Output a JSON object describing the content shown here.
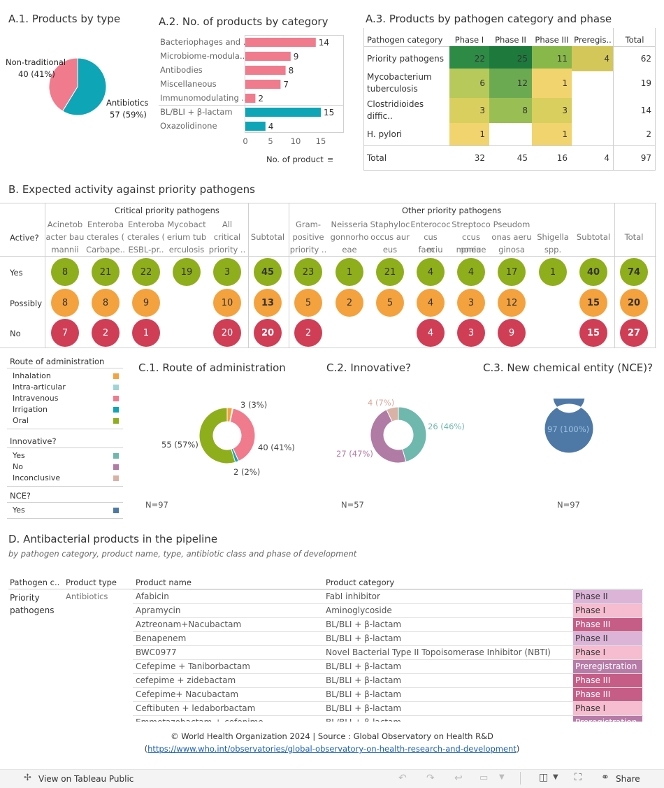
{
  "colors": {
    "pink": "#f07b8d",
    "teal": "#0ea5b7",
    "green": "#8fae1b",
    "orange": "#f4a23e",
    "red": "#cf3e55",
    "blue": "#4e79a7"
  },
  "a1": {
    "title": "A.1. Products by type",
    "nontrad_label": "Non-traditional",
    "nontrad_value": "40 (41%)",
    "antibiotics_label": "Antibiotics",
    "antibiotics_value": "57 (59%)"
  },
  "a2": {
    "title": "A.2. No. of products by category",
    "axis_label": "No. of product",
    "ticks": [
      "0",
      "5",
      "10",
      "15"
    ]
  },
  "a3": {
    "title": "A.3. Products by pathogen category and phase",
    "headers": [
      "Pathogen category",
      "Phase I",
      "Phase II",
      "Phase III",
      "Preregis..",
      "Total"
    ],
    "rows": [
      {
        "name": "Priority pathogens",
        "cells": [
          "22",
          "25",
          "11",
          "4"
        ],
        "total": "62"
      },
      {
        "name": "Mycobacterium tuberculosis",
        "cells": [
          "6",
          "12",
          "1",
          ""
        ],
        "total": "19"
      },
      {
        "name": "Clostridioides diffic..",
        "cells": [
          "3",
          "8",
          "3",
          ""
        ],
        "total": "14"
      },
      {
        "name": "H. pylori",
        "cells": [
          "1",
          "",
          "1",
          ""
        ],
        "total": "2"
      }
    ],
    "total_row": {
      "name": "Total",
      "cells": [
        "32",
        "45",
        "16",
        "4"
      ],
      "total": "97"
    }
  },
  "b": {
    "title": "B. Expected activity against priority pathogens",
    "group_critical": "Critical priority pathogens",
    "group_other": "Other priority pathogens",
    "active_label": "Active?",
    "row_labels": [
      "Yes",
      "Possibly",
      "No"
    ],
    "columns": [
      {
        "h1": "Acinetob",
        "h2": "acter bau",
        "h3": "mannii",
        "yes": "8",
        "pos": "8",
        "no": "7"
      },
      {
        "h1": "Enteroba",
        "h2": "cterales (",
        "h3": "Carbape..",
        "yes": "21",
        "pos": "8",
        "no": "2"
      },
      {
        "h1": "Enteroba",
        "h2": "cterales (",
        "h3": "ESBL-pr..",
        "yes": "22",
        "pos": "9",
        "no": "1"
      },
      {
        "h1": "Mycobact",
        "h2": "erium tub",
        "h3": "erculosis",
        "yes": "19",
        "pos": "",
        "no": ""
      },
      {
        "h1": "All",
        "h2": "critical",
        "h3": "priority ..",
        "yes": "3",
        "pos": "10",
        "no": "20"
      },
      {
        "h1": "",
        "h2": "Subtotal",
        "h3": "",
        "yes": "45",
        "pos": "13",
        "no": "20"
      },
      {
        "h1": "Gram-",
        "h2": "positive",
        "h3": "priority ..",
        "yes": "23",
        "pos": "5",
        "no": "2"
      },
      {
        "h1": "Neisseria",
        "h2": "gonnorho",
        "h3": "eae",
        "yes": "1",
        "pos": "2",
        "no": ""
      },
      {
        "h1": "Staphyloc",
        "h2": "occus aur",
        "h3": "eus",
        "yes": "21",
        "pos": "5",
        "no": ""
      },
      {
        "h1": "Enterococ",
        "h2": "cus faeciu",
        "h3": "m",
        "yes": "4",
        "pos": "4",
        "no": "4"
      },
      {
        "h1": "Streptoco",
        "h2": "ccus pneu",
        "h3": "moniae",
        "yes": "4",
        "pos": "3",
        "no": "3"
      },
      {
        "h1": "Pseudom",
        "h2": "onas aeru",
        "h3": "ginosa",
        "yes": "17",
        "pos": "12",
        "no": "9"
      },
      {
        "h1": "",
        "h2": "Shigella",
        "h3": "spp.",
        "yes": "1",
        "pos": "",
        "no": ""
      },
      {
        "h1": "",
        "h2": "Subtotal",
        "h3": "",
        "yes": "40",
        "pos": "15",
        "no": "15"
      },
      {
        "h1": "",
        "h2": "Total",
        "h3": "",
        "yes": "74",
        "pos": "20",
        "no": "27"
      }
    ]
  },
  "legends": {
    "route_title": "Route of administration",
    "route": [
      {
        "label": "Inhalation",
        "color": "#f4a23e"
      },
      {
        "label": "Intra-articular",
        "color": "#9fd4d6"
      },
      {
        "label": "Intravenous",
        "color": "#f07b8d"
      },
      {
        "label": "Irrigation",
        "color": "#0ea5b7"
      },
      {
        "label": "Oral",
        "color": "#8fae1b"
      }
    ],
    "innov_title": "Innovative?",
    "innov": [
      {
        "label": "Yes",
        "color": "#6fb8ad"
      },
      {
        "label": "No",
        "color": "#b07ba5"
      },
      {
        "label": "Inconclusive",
        "color": "#d9b2a6"
      }
    ],
    "nce_title": "NCE?",
    "nce": [
      {
        "label": "Yes",
        "color": "#4e79a7"
      }
    ]
  },
  "c1": {
    "title": "C.1. Route of administration",
    "n": "N=97",
    "l1": "3 (3%)",
    "l2": "40 (41%)",
    "l3": "2 (2%)",
    "l4": "55 (57%)"
  },
  "c2": {
    "title": "C.2. Innovative?",
    "n": "N=57",
    "l1": "4 (7%)",
    "l2": "26 (46%)",
    "l3": "27 (47%)"
  },
  "c3": {
    "title": "C.3. New chemical entity (NCE)?",
    "n": "N=97",
    "l1": "97 (100%)"
  },
  "d": {
    "title": "D. Antibacterial products in the pipeline",
    "subtitle": "by pathogen category, product name, type, antibiotic class and phase of development",
    "headers": [
      "Pathogen c..",
      "Product type",
      "Product name",
      "Product category"
    ],
    "group": "Priority pathogens",
    "type": "Antibiotics",
    "rows": [
      {
        "name": "Afabicin",
        "cat": "FabI inhibitor",
        "phase": "Phase II"
      },
      {
        "name": "Apramycin",
        "cat": "Aminoglycoside",
        "phase": "Phase I"
      },
      {
        "name": "Aztreonam+Nacubactam",
        "cat": "BL/BLI + β-lactam",
        "phase": "Phase III"
      },
      {
        "name": "Benapenem",
        "cat": "BL/BLI + β-lactam",
        "phase": "Phase II"
      },
      {
        "name": "BWC0977",
        "cat": "Novel Bacterial Type II Topoisomerase Inhibitor (NBTI)",
        "phase": "Phase I"
      },
      {
        "name": "Cefepime + Taniborbactam",
        "cat": "BL/BLI + β-lactam",
        "phase": "Preregistration"
      },
      {
        "name": "cefepime + zidebactam",
        "cat": "BL/BLI + β-lactam",
        "phase": "Phase III"
      },
      {
        "name": "Cefepime+ Nacubactam",
        "cat": "BL/BLI + β-lactam",
        "phase": "Phase III"
      },
      {
        "name": "Ceftibuten + ledaborbactam",
        "cat": "BL/BLI + β-lactam",
        "phase": "Phase I"
      },
      {
        "name": "Emmetazobactam + cefepime",
        "cat": "BL/BLI + β-lactam",
        "phase": "Preregistration"
      }
    ]
  },
  "footer": {
    "line1": "© World Health Organization 2024 | Source : Global Observatory on Health R&D",
    "link": "https://www.who.int/observatories/global-observatory-on-health-research-and-development",
    "open": "(",
    "close": ")"
  },
  "toolbar": {
    "view": "View on Tableau Public",
    "share": "Share"
  },
  "chart_data": [
    {
      "type": "pie",
      "title": "A.1. Products by type",
      "categories": [
        "Antibiotics",
        "Non-traditional"
      ],
      "values": [
        57,
        40
      ]
    },
    {
      "type": "bar",
      "title": "A.2. No. of products by category",
      "xlabel": "No. of product",
      "categories": [
        "Bacteriophages and ..",
        "Microbiome-modula..",
        "Antibodies",
        "Miscellaneous",
        "Immunomodulating ..",
        "BL/BLI + β-lactam",
        "Oxazolidinone"
      ],
      "values": [
        14,
        9,
        8,
        7,
        2,
        15,
        4
      ],
      "xlim": [
        0,
        17
      ]
    },
    {
      "type": "pie",
      "title": "C.1. Route of administration",
      "categories": [
        "Inhalation",
        "Intra-articular",
        "Intravenous",
        "Irrigation",
        "Oral"
      ],
      "values": [
        3,
        0.5,
        40,
        2,
        55
      ]
    },
    {
      "type": "pie",
      "title": "C.2. Innovative?",
      "categories": [
        "Yes",
        "No",
        "Inconclusive"
      ],
      "values": [
        26,
        27,
        4
      ]
    },
    {
      "type": "pie",
      "title": "C.3. New chemical entity (NCE)?",
      "categories": [
        "Yes"
      ],
      "values": [
        97
      ]
    }
  ]
}
